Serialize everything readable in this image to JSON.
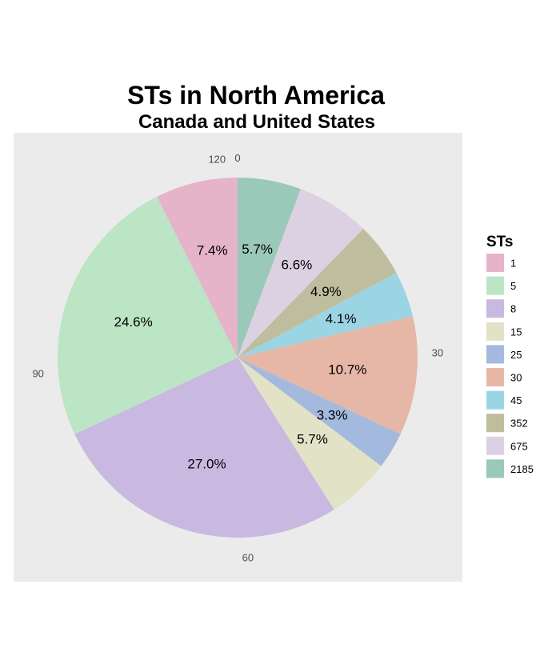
{
  "chart_data": {
    "type": "pie",
    "title": "STs in North America",
    "subtitle": "Canada and United States",
    "legend_title": "STs",
    "legend_position": "right",
    "grid": false,
    "direction": "clockwise",
    "start_angle": "top",
    "angle_axis": {
      "ticks": [
        "0",
        "30",
        "60",
        "90",
        "120"
      ],
      "max": 122
    },
    "slices": [
      {
        "category": "2185",
        "percent": 5.7,
        "label": "5.7%",
        "color": "#9AC8B9"
      },
      {
        "category": "675",
        "percent": 6.6,
        "label": "6.6%",
        "color": "#DCD1E2"
      },
      {
        "category": "352",
        "percent": 4.9,
        "label": "4.9%",
        "color": "#BEBE9F"
      },
      {
        "category": "45",
        "percent": 4.1,
        "label": "4.1%",
        "color": "#9BD5E4"
      },
      {
        "category": "30",
        "percent": 10.7,
        "label": "10.7%",
        "color": "#E6B7A6"
      },
      {
        "category": "25",
        "percent": 3.3,
        "label": "3.3%",
        "color": "#A3BADE"
      },
      {
        "category": "15",
        "percent": 5.7,
        "label": "5.7%",
        "color": "#E2E2C7"
      },
      {
        "category": "8",
        "percent": 27.0,
        "label": "27.0%",
        "color": "#C9B8E0"
      },
      {
        "category": "5",
        "percent": 24.6,
        "label": "24.6%",
        "color": "#BBE5C4"
      },
      {
        "category": "1",
        "percent": 7.4,
        "label": "7.4%",
        "color": "#E6B4C9"
      }
    ],
    "legend": [
      "1",
      "5",
      "8",
      "15",
      "25",
      "30",
      "45",
      "352",
      "675",
      "2185"
    ]
  },
  "colors": {
    "panel_background": "#EBEBEB",
    "tick_label": "#4D4D4D"
  }
}
